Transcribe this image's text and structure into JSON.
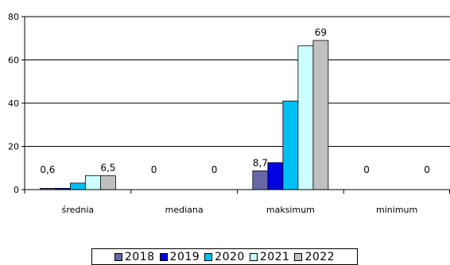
{
  "chart_data": {
    "type": "bar",
    "categories": [
      "średnia",
      "mediana",
      "maksimum",
      "minimum"
    ],
    "ylim": [
      0,
      80
    ],
    "yticks": [
      0,
      20,
      40,
      60,
      80
    ],
    "grid": true,
    "legend_position": "bottom",
    "series": [
      {
        "name": "2018",
        "color": "#6668a8",
        "values": [
          0.6,
          0,
          8.7,
          0
        ]
      },
      {
        "name": "2019",
        "color": "#0000e0",
        "values": [
          0.6,
          0,
          12.5,
          0
        ]
      },
      {
        "name": "2020",
        "color": "#00bff5",
        "values": [
          3,
          0,
          41,
          0
        ]
      },
      {
        "name": "2021",
        "color": "#ccffff",
        "values": [
          6.5,
          0,
          66.5,
          0
        ]
      },
      {
        "name": "2022",
        "color": "#c0c0c0",
        "values": [
          6.5,
          0,
          69,
          0
        ]
      }
    ],
    "data_labels": [
      {
        "category": 0,
        "series": 0,
        "text": "0,6"
      },
      {
        "category": 0,
        "series": 4,
        "text": "6,5"
      },
      {
        "category": 1,
        "series": 0,
        "text": "0"
      },
      {
        "category": 1,
        "series": 4,
        "text": "0"
      },
      {
        "category": 2,
        "series": 0,
        "text": "8,7"
      },
      {
        "category": 2,
        "series": 4,
        "text": "69"
      },
      {
        "category": 3,
        "series": 0,
        "text": "0"
      },
      {
        "category": 3,
        "series": 4,
        "text": "0"
      }
    ]
  }
}
